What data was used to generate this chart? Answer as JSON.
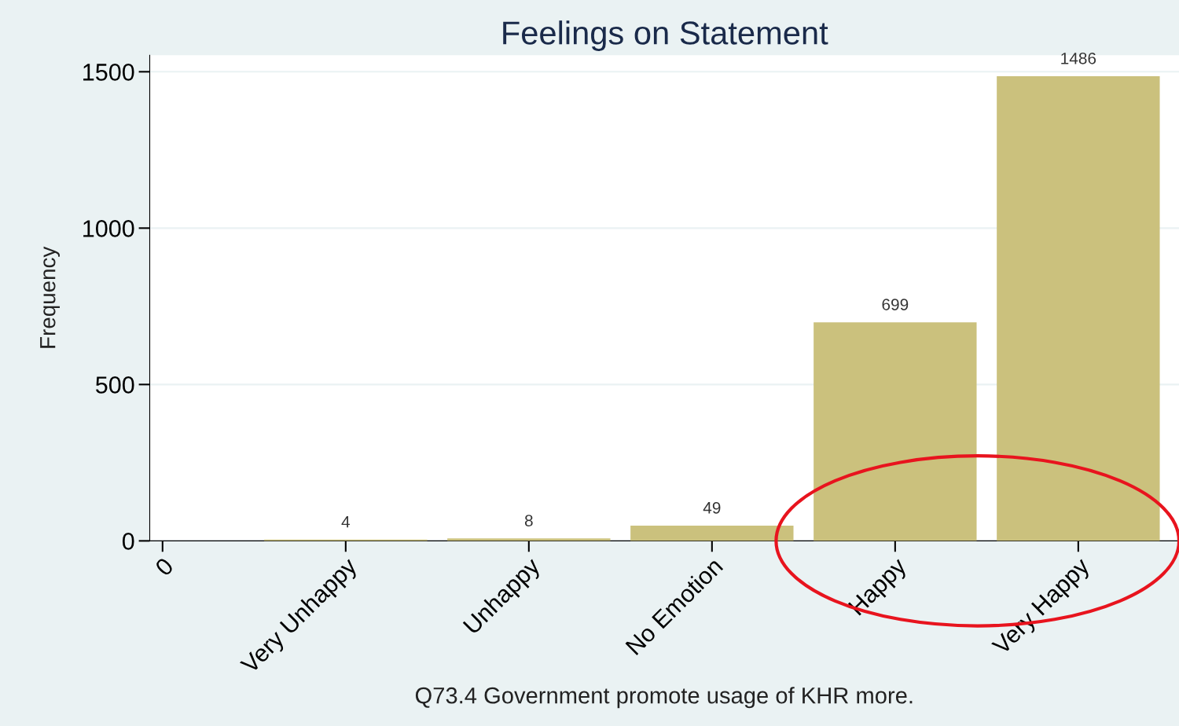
{
  "chart_data": {
    "type": "bar",
    "title": "Feelings on Statement",
    "xlabel": "Q73.4 Government promote usage of KHR more.",
    "ylabel": "Frequency",
    "categories": [
      "0",
      "Very Unhappy",
      "Unhappy",
      "No Emotion",
      "Happy",
      "Very Happy"
    ],
    "values": [
      0,
      4,
      8,
      49,
      699,
      1486
    ],
    "value_labels": [
      null,
      "4",
      "8",
      "49",
      "699",
      "1486"
    ],
    "color": "#cbc17d",
    "ylim": [
      0,
      1553
    ],
    "yticks": [
      0,
      500,
      1000,
      1500
    ],
    "grid": "y",
    "legend": false
  }
}
